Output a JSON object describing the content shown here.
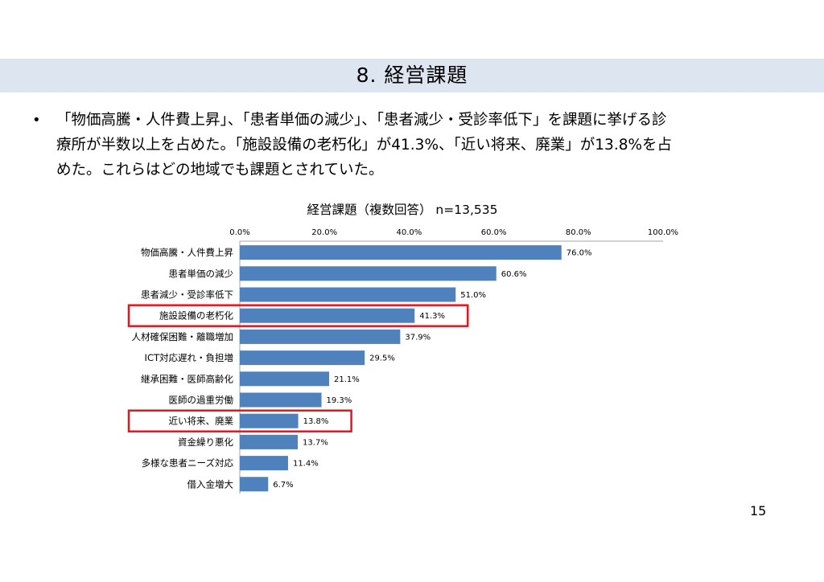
{
  "slide": {
    "heading": "8. 経営課題",
    "bullet_marker": "•",
    "bullet_lines": [
      "「物価高騰・人件費上昇」、「患者単価の減少」、「患者減少・受診率低下」を課題に挙げる診",
      "療所が半数以上を占めた。「施設設備の老朽化」が41.3%、「近い将来、廃業」が13.8%を占",
      "めた。これらはどの地域でも課題とされていた。"
    ],
    "page_number": "15"
  },
  "chart_data": {
    "type": "bar",
    "orientation": "horizontal",
    "title": "経営課題（複数回答） n=13,535",
    "categories": [
      "物価高騰・人件費上昇",
      "患者単価の減少",
      "患者減少・受診率低下",
      "施設設備の老朽化",
      "人材確保困難・離職増加",
      "ICT対応遅れ・負担増",
      "継承困難・医師高齢化",
      "医師の過重労働",
      "近い将来、廃業",
      "資金繰り悪化",
      "多様な患者ニーズ対応",
      "借入金増大"
    ],
    "values": [
      76.0,
      60.6,
      51.0,
      41.3,
      37.9,
      29.5,
      21.1,
      19.3,
      13.8,
      13.7,
      11.4,
      6.7
    ],
    "value_labels": [
      "76.0%",
      "60.6%",
      "51.0%",
      "41.3%",
      "37.9%",
      "29.5%",
      "21.1%",
      "19.3%",
      "13.8%",
      "13.7%",
      "11.4%",
      "6.7%"
    ],
    "x_ticks": [
      "0.0%",
      "20.0%",
      "40.0%",
      "60.0%",
      "80.0%",
      "100.0%"
    ],
    "xlim": [
      0,
      100
    ],
    "axis_position": "top",
    "grid": false,
    "highlighted": [
      "施設設備の老朽化",
      "近い将来、廃業"
    ],
    "bar_color": "#4f81bd",
    "highlight_color": "#e8141c"
  }
}
